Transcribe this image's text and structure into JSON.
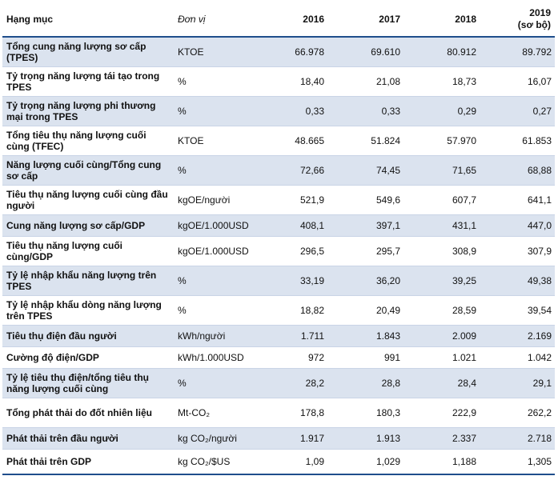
{
  "header": {
    "item": "Hạng mục",
    "unit": "Đơn vị",
    "years": [
      "2016",
      "2017",
      "2018",
      "2019"
    ],
    "year4_note": "(sơ bộ)"
  },
  "rows": [
    {
      "item": "Tổng cung năng lượng sơ cấp (TPES)",
      "unit": "KTOE",
      "values": [
        "66.978",
        "69.610",
        "80.912",
        "89.792"
      ]
    },
    {
      "item": "Tỷ trọng năng lượng tái tạo trong TPES",
      "unit": "%",
      "values": [
        "18,40",
        "21,08",
        "18,73",
        "16,07"
      ]
    },
    {
      "item": "Tỷ trọng năng lượng phi thương mại trong TPES",
      "unit": "%",
      "values": [
        "0,33",
        "0,33",
        "0,29",
        "0,27"
      ]
    },
    {
      "item": "Tổng tiêu thụ năng lượng cuối cùng (TFEC)",
      "unit": "KTOE",
      "values": [
        "48.665",
        "51.824",
        "57.970",
        "61.853"
      ]
    },
    {
      "item": "Năng lượng cuối cùng/Tổng cung sơ cấp",
      "unit": "%",
      "values": [
        "72,66",
        "74,45",
        "71,65",
        "68,88"
      ]
    },
    {
      "item": "Tiêu thụ năng lượng cuối cùng đầu người",
      "unit": "kgOE/người",
      "values": [
        "521,9",
        "549,6",
        "607,7",
        "641,1"
      ]
    },
    {
      "item": "Cung năng lượng sơ cấp/GDP",
      "unit": "kgOE/1.000USD",
      "values": [
        "408,1",
        "397,1",
        "431,1",
        "447,0"
      ]
    },
    {
      "item": "Tiêu thụ năng lượng cuối cùng/GDP",
      "unit": "kgOE/1.000USD",
      "values": [
        "296,5",
        "295,7",
        "308,9",
        "307,9"
      ]
    },
    {
      "item": "Tỷ lệ nhập khẩu năng lượng trên TPES",
      "unit": "%",
      "values": [
        "33,19",
        "36,20",
        "39,25",
        "49,38"
      ]
    },
    {
      "item": "Tỷ lệ nhập khẩu dòng năng lượng trên TPES",
      "unit": "%",
      "values": [
        "18,82",
        "20,49",
        "28,59",
        "39,54"
      ]
    },
    {
      "item": "Tiêu thụ điện đầu người",
      "unit": "kWh/người",
      "values": [
        "1.711",
        "1.843",
        "2.009",
        "2.169"
      ]
    },
    {
      "item": "Cường độ điện/GDP",
      "unit": "kWh/1.000USD",
      "values": [
        "972",
        "991",
        "1.021",
        "1.042"
      ]
    },
    {
      "item": "Tỷ lệ tiêu thụ điện/tổng tiêu thụ năng lượng cuối cùng",
      "unit": "%",
      "values": [
        "28,2",
        "28,8",
        "28,4",
        "29,1"
      ]
    },
    {
      "item": "Tổng phát thải do đốt nhiên liệu",
      "unit": "Mt-CO₂",
      "values": [
        "178,8",
        "180,3",
        "222,9",
        "262,2"
      ]
    },
    {
      "item": "Phát thải trên đầu người",
      "unit": "kg CO₂/người",
      "values": [
        "1.917",
        "1.913",
        "2.337",
        "2.718"
      ]
    },
    {
      "item": "Phát thải trên GDP",
      "unit": "kg CO₂/$US",
      "values": [
        "1,09",
        "1,029",
        "1,188",
        "1,305"
      ]
    }
  ]
}
